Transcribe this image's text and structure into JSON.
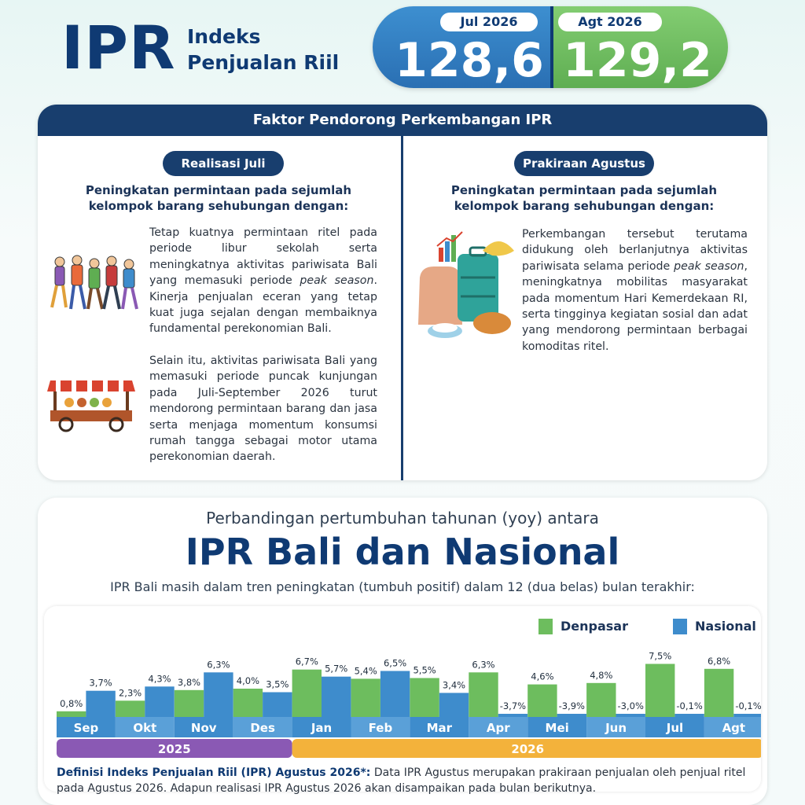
{
  "header": {
    "logo": "IPR",
    "subtitle_line1": "Indeks",
    "subtitle_line2": "Penjualan Riil",
    "prev_period": "Jul 2026",
    "prev_value": "128,6",
    "curr_period": "Agt 2026",
    "curr_value": "129,2",
    "colors": {
      "prev": "#2f7bbf",
      "curr": "#6dbd5e",
      "navy": "#0f3a73"
    }
  },
  "factors": {
    "title": "Faktor Pendorong Perkembangan IPR",
    "left": {
      "badge": "Realisasi Juli",
      "subhead": "Peningkatan permintaan pada sejumlah kelompok barang sehubungan dengan:",
      "para1_pre": "Tetap kuatnya permintaan ritel pada periode libur sekolah serta meningkatnya aktivitas pariwisata Bali yang memasuki periode ",
      "para1_em": "peak season",
      "para1_post": ". Kinerja penjualan eceran yang tetap kuat juga sejalan dengan membaiknya fundamental perekonomian Bali.",
      "para2": "Selain itu, aktivitas pariwisata Bali yang memasuki periode puncak kunjungan pada Juli-September 2026 turut mendorong permintaan barang dan jasa serta menjaga momentum konsumsi rumah tangga sebagai motor utama perekonomian daerah.",
      "icons": [
        "people-walking-icon",
        "food-cart-icon"
      ]
    },
    "right": {
      "badge": "Prakiraan Agustus",
      "subhead": "Peningkatan permintaan pada sejumlah kelompok barang sehubungan dengan:",
      "para1_pre": "Perkembangan tersebut terutama didukung oleh berlanjutnya aktivitas pariwisata selama periode ",
      "para1_em": "peak season",
      "para1_post": ", meningkatnya mobilitas masyarakat pada momentum Hari Kemerdekaan RI, serta tingginya kegiatan sosial dan adat yang mendorong permintaan berbagai komoditas ritel.",
      "icons": [
        "retail-goods-icon"
      ]
    }
  },
  "comparison": {
    "intro": "Perbandingan pertumbuhan tahunan (yoy) antara",
    "title": "IPR Bali dan Nasional",
    "desc": "IPR Bali masih dalam tren peningkatan (tumbuh positif) dalam 12 (dua belas) bulan terakhir:"
  },
  "chart_data": {
    "type": "bar",
    "categories": [
      "Sep",
      "Okt",
      "Nov",
      "Des",
      "Jan",
      "Feb",
      "Mar",
      "Apr",
      "Mei",
      "Jun",
      "Jul",
      "Agt"
    ],
    "series": [
      {
        "name": "Denpasar",
        "color": "#6dbd5e",
        "values": [
          0.8,
          2.3,
          3.8,
          4.0,
          6.7,
          5.4,
          5.5,
          6.3,
          4.6,
          4.8,
          7.5,
          6.8
        ],
        "labels": [
          "0,8%",
          "2,3%",
          "3,8%",
          "4,0%",
          "6,7%",
          "5,4%",
          "5,5%",
          "6,3%",
          "4,6%",
          "4,8%",
          "7,5%",
          "6,8%"
        ]
      },
      {
        "name": "Nasional",
        "color": "#3e8ccc",
        "values": [
          3.7,
          4.3,
          6.3,
          3.5,
          5.7,
          6.5,
          3.4,
          -3.7,
          -3.9,
          -3.0,
          -0.1,
          -0.1
        ],
        "labels": [
          "3,7%",
          "4,3%",
          "6,3%",
          "3,5%",
          "5,7%",
          "6,5%",
          "3,4%",
          "-3,7%",
          "-3,9%",
          "-3,0%",
          "-0,1%",
          "-0,1%"
        ]
      }
    ],
    "years": [
      {
        "label": "2025",
        "span": 4,
        "color": "#8a59b4"
      },
      {
        "label": "2026",
        "span": 8,
        "color": "#f3b23b"
      }
    ],
    "legend": "top-right",
    "grid": false
  },
  "definition": {
    "bold": "Definisi Indeks Penjualan Riil (IPR) Agustus 2026*:",
    "text": " Data IPR Agustus merupakan prakiraan penjualan oleh penjual ritel pada Agustus 2026. Adapun realisasi IPR Agustus 2026 akan disampaikan pada bulan berikutnya."
  }
}
